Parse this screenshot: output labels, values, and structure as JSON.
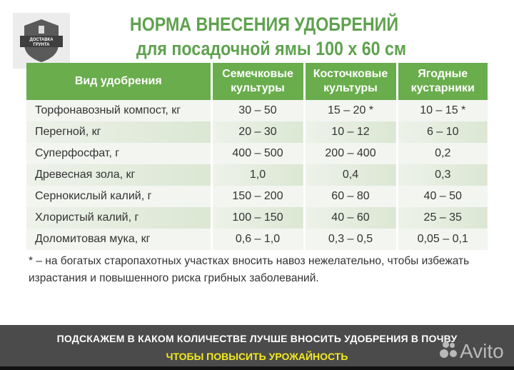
{
  "logo": {
    "text_line1": "ДОСТАВКА",
    "text_line2": "ГРУНТА"
  },
  "title": "НОРМА ВНЕСЕНИЯ УДОБРЕНИЙ",
  "subtitle": "для посадочной ямы 100 х 60 см",
  "colors": {
    "accent_green": "#69ad4c",
    "title_green": "#5ea24e",
    "band": "#4b4b4b",
    "highlight_yellow": "#f3ea1e"
  },
  "table": {
    "headers": [
      {
        "line1": "Вид удобрения",
        "line2": ""
      },
      {
        "line1": "Семечковые",
        "line2": "культуры"
      },
      {
        "line1": "Косточковые",
        "line2": "культуры"
      },
      {
        "line1": "Ягодные",
        "line2": "кустарники"
      }
    ],
    "rows": [
      [
        "Торфонавозный компост, кг",
        "30 – 50",
        "15 – 20 *",
        "10 – 15 *"
      ],
      [
        "Перегной, кг",
        "20 – 30",
        "10 – 12",
        "6 – 10"
      ],
      [
        "Суперфосфат, г",
        "400 – 500",
        "200 – 400",
        "0,2"
      ],
      [
        "Древесная зола, кг",
        "1,0",
        "0,4",
        "0,3"
      ],
      [
        "Сернокислый калий, г",
        "150 – 200",
        "60 – 80",
        "40 – 50"
      ],
      [
        "Хлористый калий, г",
        "100 – 150",
        "40 – 60",
        "25 – 35"
      ],
      [
        "Доломитовая мука, кг",
        "0,6 – 1,0",
        "0,3 – 0,5",
        "0,05 – 0,1"
      ]
    ]
  },
  "footnote": "* – на богатых старопахотных участках вносить навоз нежелательно, чтобы избежать израстания и повышенного риска грибных заболеваний.",
  "banner": {
    "line1": "ПОДСКАЖЕМ В КАКОМ КОЛИЧЕСТВЕ ЛУЧШЕ ВНОСИТЬ УДОБРЕНИЯ В ПОЧВУ",
    "line2": "ЧТОБЫ ПОВЫСИТЬ УРОЖАЙНОСТЬ"
  },
  "watermark": "Avito"
}
